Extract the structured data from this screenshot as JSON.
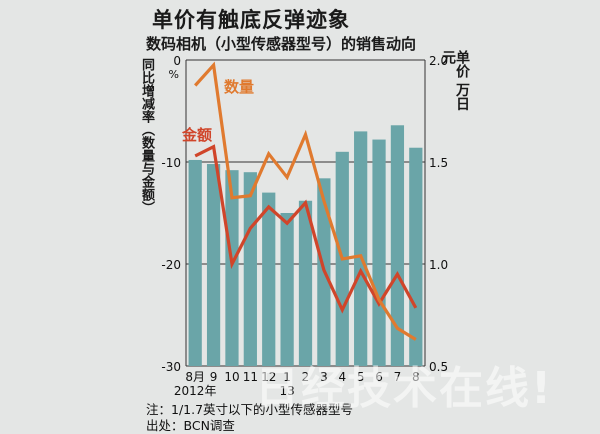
{
  "title": "单价有触底反弹迹象",
  "subtitle": "数码相机（小型传感器型号）的销售动向",
  "notes": {
    "note": "注：1/1.7英寸以下的小型传感器型号",
    "source": "出处：BCN调查"
  },
  "watermark": "日经技术在线!",
  "colors": {
    "background": "#e4e6e5",
    "bar": "#6aa5a8",
    "quantity_line": "#e07a2f",
    "amount_line": "#d0452a"
  },
  "chart_data": {
    "type": "bar+line",
    "categories": [
      "8月",
      "9",
      "10",
      "11",
      "12",
      "1",
      "2",
      "3",
      "4",
      "5",
      "6",
      "7",
      "8"
    ],
    "category_labels_row2": [
      "2012年",
      "",
      "",
      "",
      "",
      "13",
      "",
      "",
      "",
      "",
      "",
      "",
      ""
    ],
    "left_axis": {
      "label": "同比增减率（数量与金额）",
      "unit": "%",
      "range": [
        -30,
        0
      ],
      "ticks": [
        0,
        -10,
        -20,
        -30
      ],
      "tick_labels": [
        "0",
        "-10",
        "-20",
        "-30"
      ]
    },
    "right_axis": {
      "label": "单价 万日元",
      "range": [
        0.5,
        2.0
      ],
      "ticks": [
        2.0,
        1.5,
        1.0,
        0.5
      ],
      "tick_labels": [
        "2.0",
        "1.5",
        "1.0",
        "0.5"
      ]
    },
    "grid": true,
    "series": [
      {
        "name": "",
        "kind": "bar",
        "axis": "right",
        "values": [
          1.51,
          1.49,
          1.46,
          1.45,
          1.35,
          1.25,
          1.31,
          1.42,
          1.55,
          1.65,
          1.61,
          1.68,
          1.57
        ]
      },
      {
        "name": "数量",
        "kind": "line",
        "axis": "left",
        "values": [
          -2.5,
          -0.5,
          -13.5,
          -13.3,
          -9.2,
          -11.5,
          -7.3,
          -13.8,
          -19.5,
          -19.2,
          -23.5,
          -26.3,
          -27.4
        ]
      },
      {
        "name": "金额",
        "kind": "line",
        "axis": "left",
        "values": [
          -9.4,
          -8.5,
          -20.0,
          -16.5,
          -14.4,
          -16.0,
          -14.0,
          -20.6,
          -24.5,
          -20.7,
          -23.9,
          -21.0,
          -24.3
        ]
      }
    ],
    "series_labels": {
      "quantity": "数量",
      "amount": "金额"
    }
  }
}
